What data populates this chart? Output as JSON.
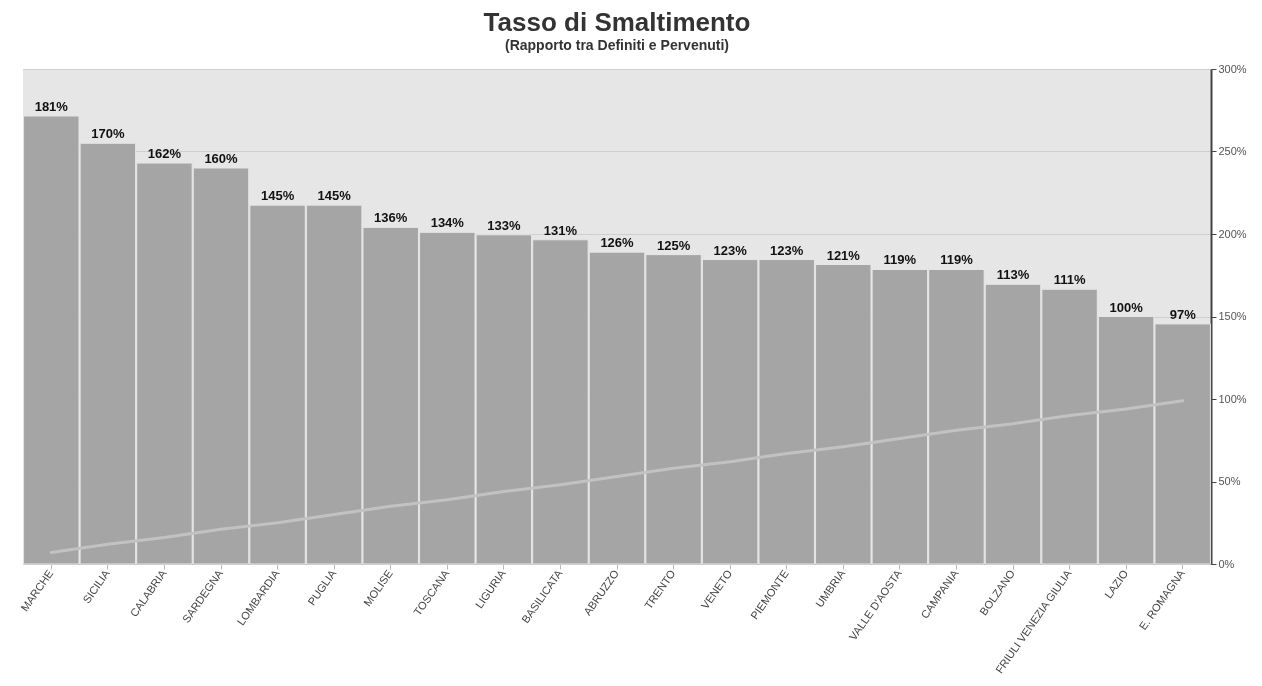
{
  "chart_data": {
    "type": "bar",
    "title": "Tasso di Smaltimento",
    "subtitle": "(Rapporto tra Definiti e Pervenuti)",
    "categories": [
      "MARCHE",
      "SICILIA",
      "CALABRIA",
      "SARDEGNA",
      "LOMBARDIA",
      "PUGLIA",
      "MOLISE",
      "TOSCANA",
      "LIGURIA",
      "BASILICATA",
      "ABRUZZO",
      "TRENTO",
      "VENETO",
      "PIEMONTE",
      "UMBRIA",
      "VALLE D'AOSTA",
      "CAMPANIA",
      "BOLZANO",
      "FRIULI VENEZIA GIULIA",
      "LAZIO",
      "E. ROMAGNA"
    ],
    "series": [
      {
        "color": "#a5a5a5",
        "values": [
          181,
          170,
          162,
          160,
          145,
          145,
          136,
          134,
          133,
          131,
          126,
          125,
          123,
          123,
          121,
          119,
          119,
          113,
          111,
          100,
          97
        ],
        "value_labels": [
          "181%",
          "170%",
          "162%",
          "160%",
          "145%",
          "145%",
          "136%",
          "134%",
          "133%",
          "131%",
          "126%",
          "125%",
          "123%",
          "123%",
          "121%",
          "119%",
          "119%",
          "113%",
          "111%",
          "100%",
          "97%"
        ]
      },
      {
        "type": "line",
        "axis": "y2",
        "color": "#c2c2c2",
        "values": [
          7,
          12,
          16,
          21,
          25,
          30,
          35,
          39,
          44,
          48,
          53,
          58,
          62,
          67,
          71,
          76,
          81,
          85,
          90,
          94,
          99
        ]
      }
    ],
    "ylim": [
      0,
      200
    ],
    "y2lim": [
      0,
      300
    ],
    "y2ticks": [
      {
        "value": 0,
        "label": "0%"
      },
      {
        "value": 50,
        "label": "50%"
      },
      {
        "value": 100,
        "label": "100%"
      },
      {
        "value": 150,
        "label": "150%"
      },
      {
        "value": 200,
        "label": "200%"
      },
      {
        "value": 250,
        "label": "250%"
      },
      {
        "value": 300,
        "label": "300%"
      }
    ],
    "grid": true
  }
}
